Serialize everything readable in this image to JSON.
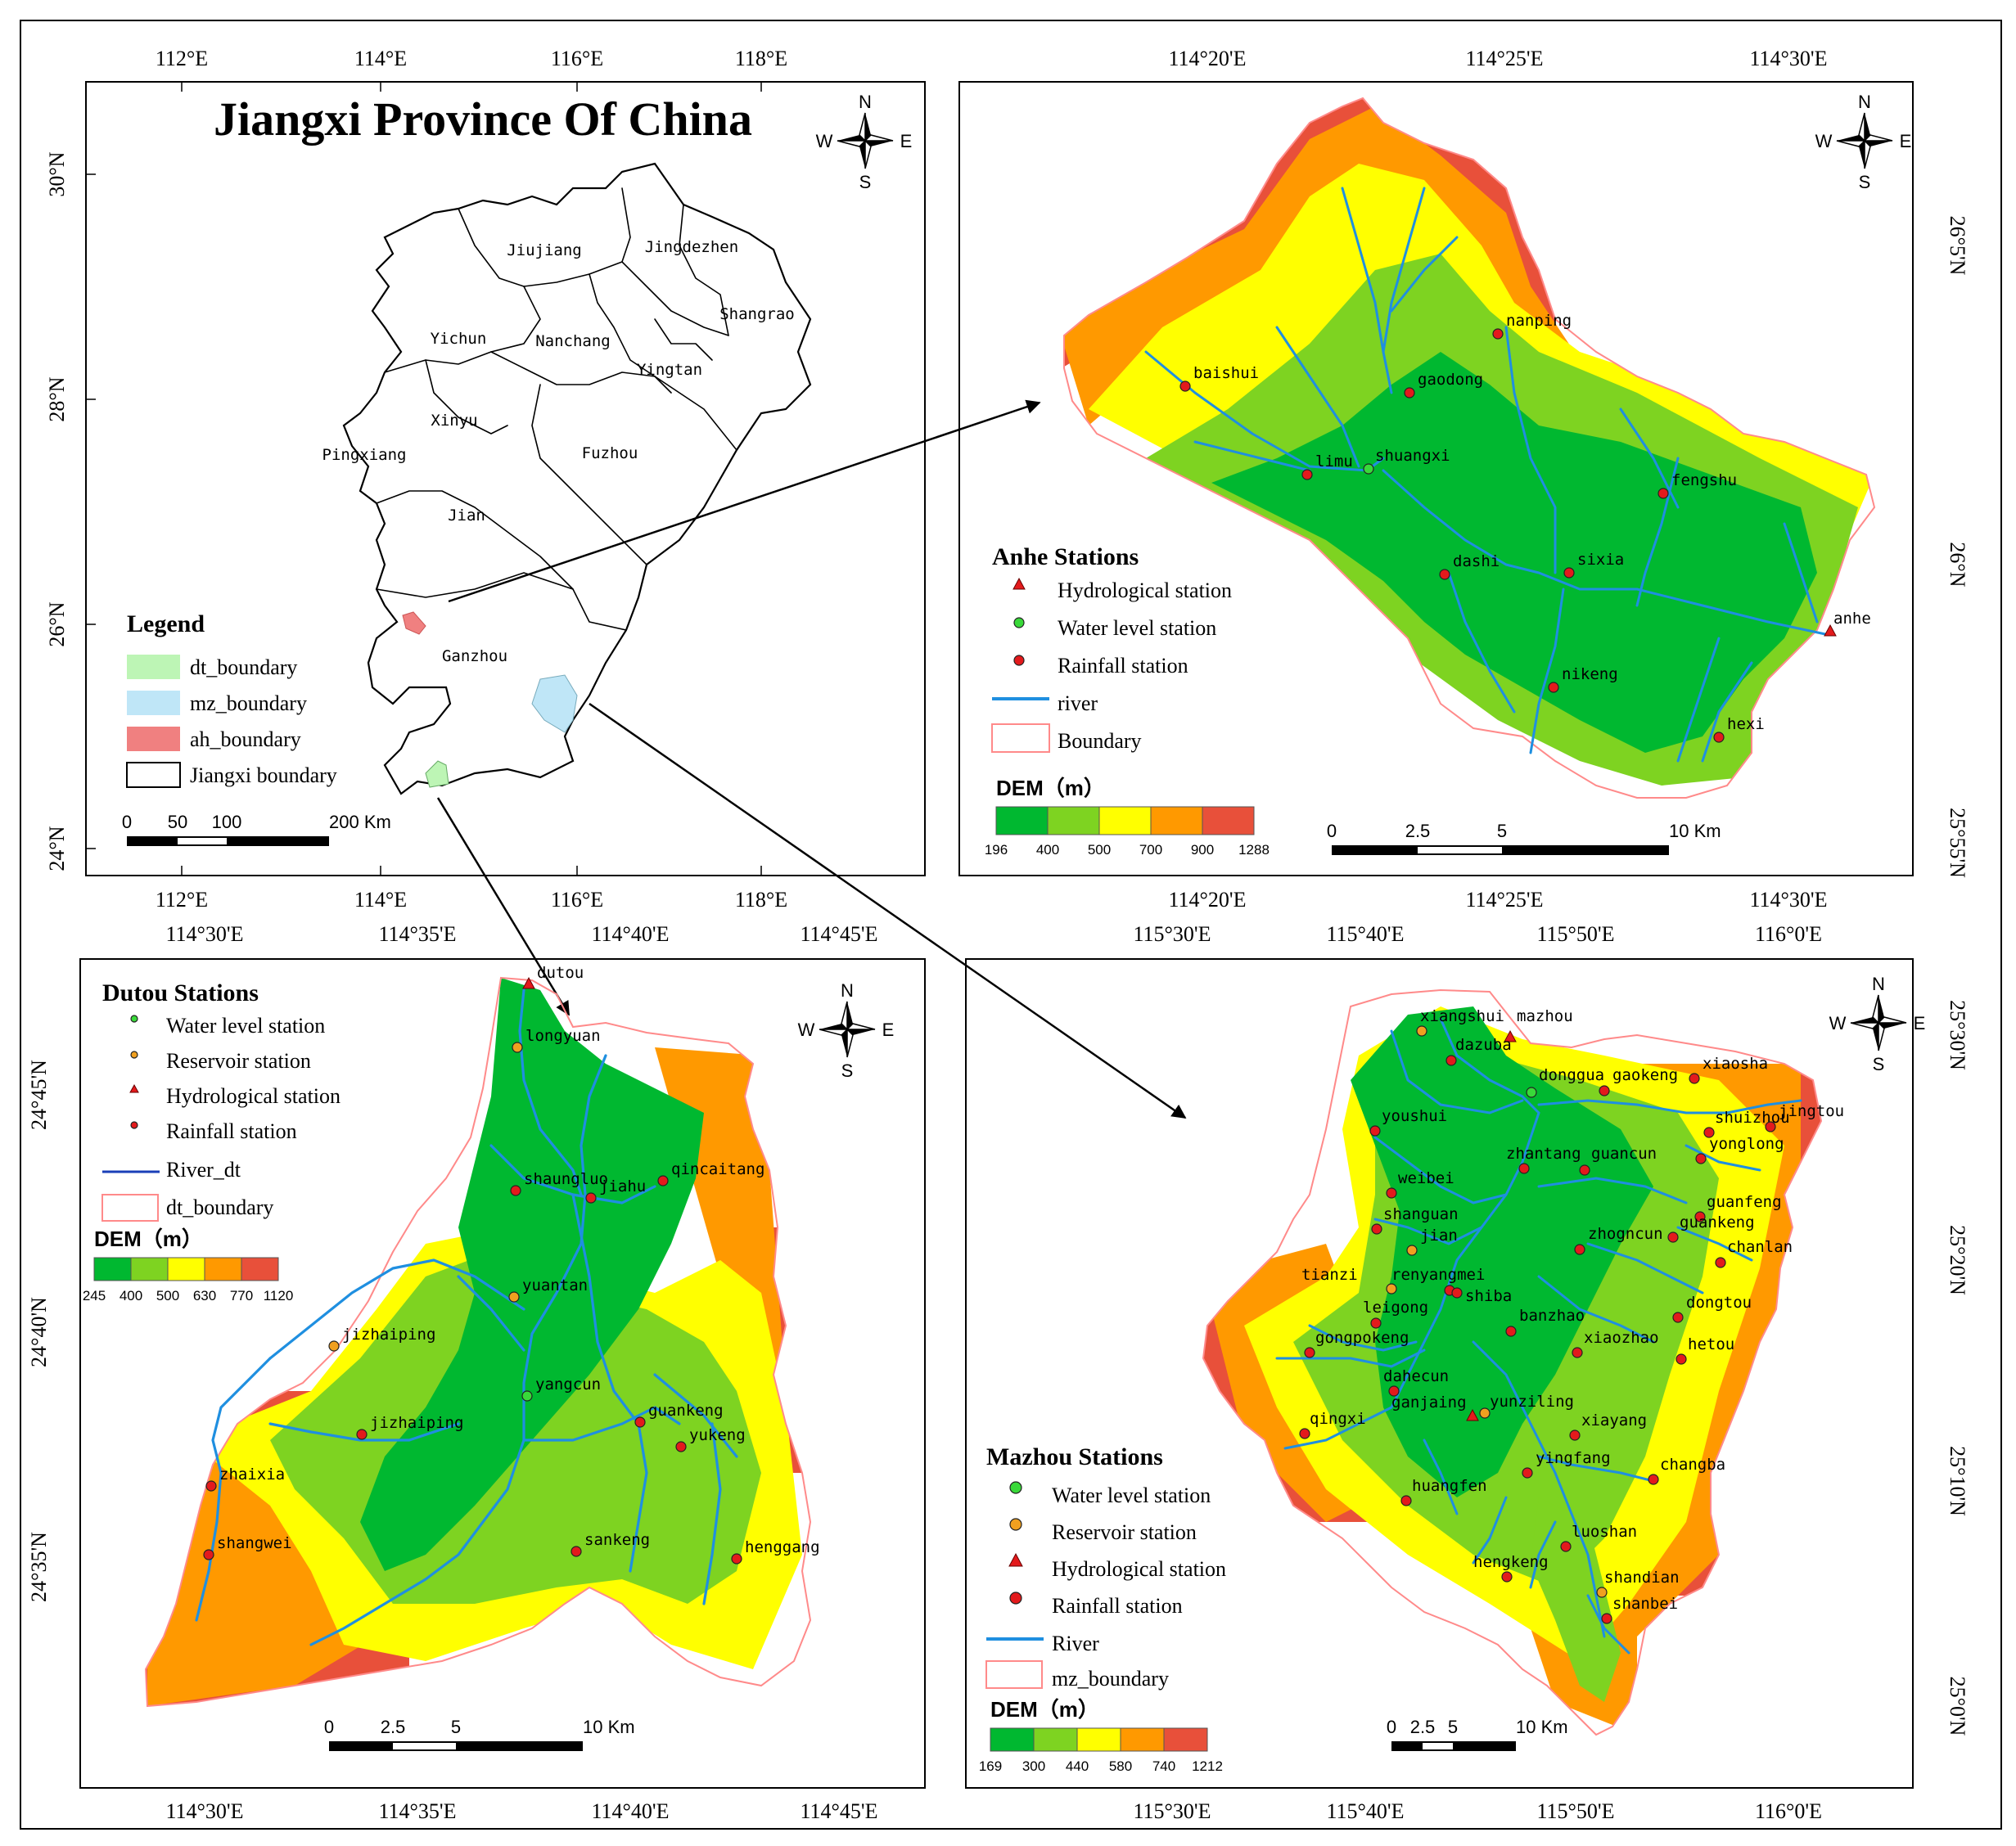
{
  "title": "Jiangxi Province Of China",
  "compass": {
    "n": "N",
    "s": "S",
    "e": "E",
    "w": "W"
  },
  "colors": {
    "dem": [
      "#00b830",
      "#7ed321",
      "#ffff00",
      "#ff9900",
      "#e8503a"
    ],
    "river": "#1f8fe0",
    "river_dt": "#1a3fb8",
    "boundary": "#ff8a8a",
    "dt_boundary_fill": "#bdf5b5",
    "mz_boundary_fill": "#bfe6f7",
    "ah_boundary_fill": "#f08080",
    "rainfall": "#e31a1c",
    "water_level": "#39d939",
    "reservoir": "#f0a020",
    "hydrological": "#e31a1c"
  },
  "jiangxi": {
    "lon_labels": [
      "112°E",
      "114°E",
      "116°E",
      "118°E"
    ],
    "lat_labels": [
      "30°N",
      "28°N",
      "26°N",
      "24°N"
    ],
    "cities": [
      "Jiujiang",
      "Jingdezhen",
      "Shangrao",
      "Yichun",
      "Nanchang",
      "Yingtan",
      "Xinyu",
      "Pingxiang",
      "Fuzhou",
      "Jian",
      "Ganzhou"
    ],
    "legend": {
      "title": "Legend",
      "items": [
        "dt_boundary",
        "mz_boundary",
        "ah_boundary",
        "Jiangxi boundary"
      ]
    },
    "scale": [
      "0",
      "50",
      "100",
      "200 Km"
    ]
  },
  "anhe": {
    "lon_labels": [
      "114°20'E",
      "114°25'E",
      "114°30'E"
    ],
    "lat_labels": [
      "26°5'N",
      "26°N",
      "25°55'N"
    ],
    "legend_title": "Anhe Stations",
    "legend_items": [
      "Hydrological station",
      "Water level station",
      "Rainfall station",
      "river",
      "Boundary"
    ],
    "dem_title": "DEM（m）",
    "dem_ticks": [
      "196",
      "400",
      "500",
      "700",
      "900",
      "1288"
    ],
    "scale": [
      "0",
      "2.5",
      "5",
      "10 Km"
    ],
    "stations": [
      {
        "name": "nanping",
        "type": "rainfall"
      },
      {
        "name": "baishui",
        "type": "rainfall"
      },
      {
        "name": "gaodong",
        "type": "rainfall"
      },
      {
        "name": "limu",
        "type": "rainfall"
      },
      {
        "name": "shuangxi",
        "type": "water_level"
      },
      {
        "name": "fengshu",
        "type": "rainfall"
      },
      {
        "name": "dashi",
        "type": "rainfall"
      },
      {
        "name": "sixia",
        "type": "rainfall"
      },
      {
        "name": "anhe",
        "type": "hydrological"
      },
      {
        "name": "nikeng",
        "type": "rainfall"
      },
      {
        "name": "hexi",
        "type": "rainfall"
      }
    ]
  },
  "dutou": {
    "lon_labels": [
      "114°30'E",
      "114°35'E",
      "114°40'E",
      "114°45'E"
    ],
    "lat_labels": [
      "24°45'N",
      "24°40'N",
      "24°35'N"
    ],
    "legend_title": "Dutou  Stations",
    "legend_items": [
      "Water level station",
      "Reservoir station",
      "Hydrological station",
      "Rainfall station",
      "River_dt",
      "dt_boundary"
    ],
    "dem_title": "DEM（m）",
    "dem_ticks": [
      "245",
      "400",
      "500",
      "630",
      "770",
      "1120"
    ],
    "scale": [
      "0",
      "2.5",
      "5",
      "10 Km"
    ],
    "stations": [
      {
        "name": "dutou",
        "type": "hydrological"
      },
      {
        "name": "longyuan",
        "type": "reservoir"
      },
      {
        "name": "shaungluo",
        "type": "rainfall"
      },
      {
        "name": "jiahu",
        "type": "rainfall"
      },
      {
        "name": "qincaitang",
        "type": "rainfall"
      },
      {
        "name": "yuantan",
        "type": "reservoir"
      },
      {
        "name": "jizhaiping",
        "type": "reservoir"
      },
      {
        "name": "yangcun",
        "type": "water_level"
      },
      {
        "name": "jizhaiping",
        "type": "rainfall"
      },
      {
        "name": "guankeng",
        "type": "rainfall"
      },
      {
        "name": "yukeng",
        "type": "rainfall"
      },
      {
        "name": "zhaixia",
        "type": "rainfall"
      },
      {
        "name": "shangwei",
        "type": "rainfall"
      },
      {
        "name": "sankeng",
        "type": "rainfall"
      },
      {
        "name": "henggang",
        "type": "rainfall"
      }
    ]
  },
  "mazhou": {
    "lon_labels": [
      "115°30'E",
      "115°40'E",
      "115°50'E",
      "116°0'E"
    ],
    "lat_labels": [
      "25°30'N",
      "25°20'N",
      "25°10'N",
      "25°0'N"
    ],
    "legend_title": "Mazhou Stations",
    "legend_items": [
      "Water level station",
      "Reservoir station",
      "Hydrological station",
      "Rainfall station",
      "River",
      "mz_boundary"
    ],
    "dem_title": "DEM（m）",
    "dem_ticks": [
      "169",
      "300",
      "440",
      "580",
      "740",
      "1212"
    ],
    "scale": [
      "0",
      "2.5",
      "5",
      "10 Km"
    ],
    "stations": [
      {
        "name": "xiangshui",
        "type": "reservoir"
      },
      {
        "name": "mazhou",
        "type": "hydrological"
      },
      {
        "name": "dazuba",
        "type": "rainfall"
      },
      {
        "name": "donggua",
        "type": "water_level"
      },
      {
        "name": "gaokeng",
        "type": "rainfall"
      },
      {
        "name": "xiaosha",
        "type": "rainfall"
      },
      {
        "name": "youshui",
        "type": "rainfall"
      },
      {
        "name": "shuizhou",
        "type": "rainfall"
      },
      {
        "name": "jingtou",
        "type": "rainfall"
      },
      {
        "name": "yonglong",
        "type": "rainfall"
      },
      {
        "name": "zhantang",
        "type": "rainfall"
      },
      {
        "name": "guancun",
        "type": "rainfall"
      },
      {
        "name": "weibei",
        "type": "rainfall"
      },
      {
        "name": "guanfeng",
        "type": "rainfall"
      },
      {
        "name": "shanguan",
        "type": "rainfall"
      },
      {
        "name": "jian",
        "type": "reservoir"
      },
      {
        "name": "guankeng",
        "type": "rainfall"
      },
      {
        "name": "zhogncun",
        "type": "rainfall"
      },
      {
        "name": "chanlan",
        "type": "rainfall"
      },
      {
        "name": "tianzi",
        "type": "reservoir"
      },
      {
        "name": "renyangmei",
        "type": "rainfall"
      },
      {
        "name": "shiba",
        "type": "rainfall"
      },
      {
        "name": "dongtou",
        "type": "rainfall"
      },
      {
        "name": "leigong",
        "type": "rainfall"
      },
      {
        "name": "banzhao",
        "type": "rainfall"
      },
      {
        "name": "gongpokeng",
        "type": "rainfall"
      },
      {
        "name": "xiaozhao",
        "type": "rainfall"
      },
      {
        "name": "hetou",
        "type": "rainfall"
      },
      {
        "name": "dahecun",
        "type": "rainfall"
      },
      {
        "name": "yunziling",
        "type": "hydrological"
      },
      {
        "name": "ganjaing",
        "type": "reservoir"
      },
      {
        "name": "qingxi",
        "type": "rainfall"
      },
      {
        "name": "xiayang",
        "type": "rainfall"
      },
      {
        "name": "yingfang",
        "type": "rainfall"
      },
      {
        "name": "changba",
        "type": "rainfall"
      },
      {
        "name": "huangfen",
        "type": "rainfall"
      },
      {
        "name": "luoshan",
        "type": "rainfall"
      },
      {
        "name": "hengkeng",
        "type": "rainfall"
      },
      {
        "name": "shandian",
        "type": "reservoir"
      },
      {
        "name": "shanbei",
        "type": "rainfall"
      }
    ]
  }
}
